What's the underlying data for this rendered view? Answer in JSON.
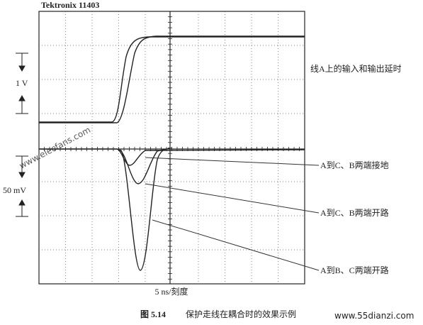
{
  "header": {
    "title": "Tektronix 11403"
  },
  "scale": {
    "volts": "1 V",
    "millivolts": "50 mV",
    "time": "5 ns/刻度"
  },
  "annotations": [
    "线A上的输入和输出延时",
    "A到C、B两端接地",
    "A到C、B两端开路",
    "A到B、C两端开路"
  ],
  "caption": {
    "label": "图 5.14",
    "text": "保护走线在耦合时的效果示例"
  },
  "watermarks": [
    "www.elecfans.com",
    "www.55dianzi.com"
  ]
}
